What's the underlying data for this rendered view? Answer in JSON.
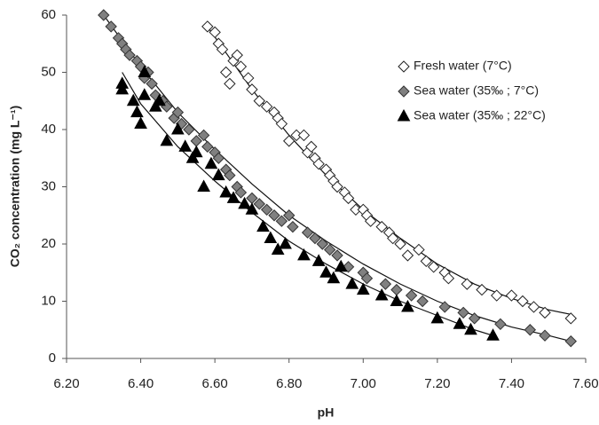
{
  "chart_data": {
    "type": "scatter",
    "x_label": "pH",
    "y_label": "CO₂ concentration (mg L⁻¹)",
    "xlim": [
      6.2,
      7.6
    ],
    "xticks": [
      {
        "value": 6.2,
        "label": "6.20"
      },
      {
        "value": 6.4,
        "label": "6.40"
      },
      {
        "value": 6.6,
        "label": "6.60"
      },
      {
        "value": 6.8,
        "label": "6.80"
      },
      {
        "value": 7.0,
        "label": "7.00"
      },
      {
        "value": 7.2,
        "label": "7.20"
      },
      {
        "value": 7.4,
        "label": "7.40"
      },
      {
        "value": 7.6,
        "label": "7.60"
      }
    ],
    "ylim": [
      0,
      60
    ],
    "yticks": [
      0,
      10,
      20,
      30,
      40,
      50,
      60
    ],
    "grid": false,
    "legend": "upper right",
    "series": [
      {
        "name": "Fresh water (7°C)",
        "marker": "diamond",
        "color": "#222222",
        "fill": "#ffffff",
        "x": [
          6.58,
          6.6,
          6.61,
          6.62,
          6.63,
          6.64,
          6.65,
          6.66,
          6.67,
          6.69,
          6.7,
          6.72,
          6.74,
          6.76,
          6.77,
          6.78,
          6.8,
          6.82,
          6.84,
          6.85,
          6.86,
          6.87,
          6.88,
          6.9,
          6.91,
          6.92,
          6.93,
          6.95,
          6.96,
          6.98,
          7.0,
          7.01,
          7.02,
          7.05,
          7.07,
          7.08,
          7.1,
          7.12,
          7.15,
          7.17,
          7.19,
          7.22,
          7.23,
          7.28,
          7.32,
          7.36,
          7.4,
          7.43,
          7.46,
          7.49,
          7.56
        ],
        "values": [
          58,
          57,
          55,
          54,
          50,
          48,
          52,
          53,
          51,
          49,
          47,
          45,
          44,
          43,
          42,
          41,
          38,
          39,
          39,
          36,
          37,
          35,
          34,
          33,
          32,
          31,
          30,
          29,
          28,
          26,
          26,
          25,
          24,
          23,
          22,
          21,
          20,
          18,
          19,
          17,
          16,
          15,
          14,
          13,
          12,
          11,
          11,
          10,
          9,
          8,
          7
        ],
        "trendline": {
          "x": [
            6.58,
            6.7,
            6.8,
            6.9,
            7.0,
            7.1,
            7.2,
            7.3,
            7.4,
            7.5,
            7.56
          ],
          "values": [
            58,
            47,
            39,
            32,
            26,
            21,
            16.5,
            13,
            10.5,
            8.5,
            7.7
          ]
        }
      },
      {
        "name": "Sea water (35‰ ; 7°C)",
        "marker": "diamond",
        "color": "#333333",
        "fill": "#808080",
        "x": [
          6.3,
          6.32,
          6.34,
          6.35,
          6.36,
          6.37,
          6.39,
          6.4,
          6.41,
          6.42,
          6.43,
          6.44,
          6.46,
          6.47,
          6.49,
          6.5,
          6.51,
          6.53,
          6.55,
          6.57,
          6.58,
          6.6,
          6.61,
          6.63,
          6.64,
          6.66,
          6.67,
          6.7,
          6.72,
          6.74,
          6.76,
          6.78,
          6.8,
          6.81,
          6.85,
          6.87,
          6.89,
          6.91,
          6.93,
          6.96,
          7.0,
          7.01,
          7.06,
          7.09,
          7.13,
          7.16,
          7.22,
          7.27,
          7.3,
          7.37,
          7.45,
          7.49,
          7.56
        ],
        "values": [
          60,
          58,
          56,
          55,
          54,
          53,
          52,
          51,
          49,
          50,
          48,
          46,
          45,
          44,
          42,
          43,
          41,
          40,
          38,
          39,
          37,
          36,
          35,
          33,
          32,
          30,
          29,
          28,
          27,
          26,
          25,
          24,
          25,
          23,
          22,
          21,
          20,
          19,
          18,
          16,
          15,
          14,
          13,
          12,
          11,
          10,
          9,
          8,
          7,
          6,
          5,
          4,
          3
        ],
        "trendline": {
          "x": [
            6.3,
            6.4,
            6.5,
            6.6,
            6.7,
            6.8,
            6.9,
            7.0,
            7.1,
            7.2,
            7.3,
            7.4,
            7.5,
            7.56
          ],
          "values": [
            60,
            51,
            43,
            36.5,
            30.5,
            25,
            20.5,
            16.5,
            13,
            10,
            7.5,
            5.5,
            4,
            3
          ]
        }
      },
      {
        "name": "Sea water (35‰ ; 22°C)",
        "marker": "triangle",
        "color": "#000000",
        "fill": "#000000",
        "x": [
          6.35,
          6.35,
          6.38,
          6.39,
          6.4,
          6.41,
          6.41,
          6.44,
          6.45,
          6.47,
          6.5,
          6.52,
          6.54,
          6.55,
          6.57,
          6.59,
          6.61,
          6.63,
          6.65,
          6.68,
          6.7,
          6.73,
          6.75,
          6.77,
          6.79,
          6.84,
          6.88,
          6.9,
          6.92,
          6.94,
          6.97,
          7.0,
          7.05,
          7.09,
          7.12,
          7.2,
          7.26,
          7.29,
          7.35
        ],
        "values": [
          48,
          47,
          45,
          43,
          41,
          50,
          46,
          44,
          45,
          38,
          40,
          37,
          35,
          36,
          30,
          34,
          32,
          29,
          28,
          27,
          26,
          23,
          21,
          19,
          20,
          18,
          17,
          15,
          14,
          16,
          13,
          12,
          11,
          10,
          9,
          7,
          6,
          5,
          4
        ],
        "trendline": {
          "x": [
            6.35,
            6.4,
            6.5,
            6.6,
            6.7,
            6.8,
            6.9,
            7.0,
            7.1,
            7.2,
            7.3,
            7.35
          ],
          "values": [
            50,
            44.5,
            37,
            31,
            25.5,
            20.5,
            16.5,
            13,
            10,
            7.5,
            5,
            4
          ]
        }
      }
    ]
  }
}
